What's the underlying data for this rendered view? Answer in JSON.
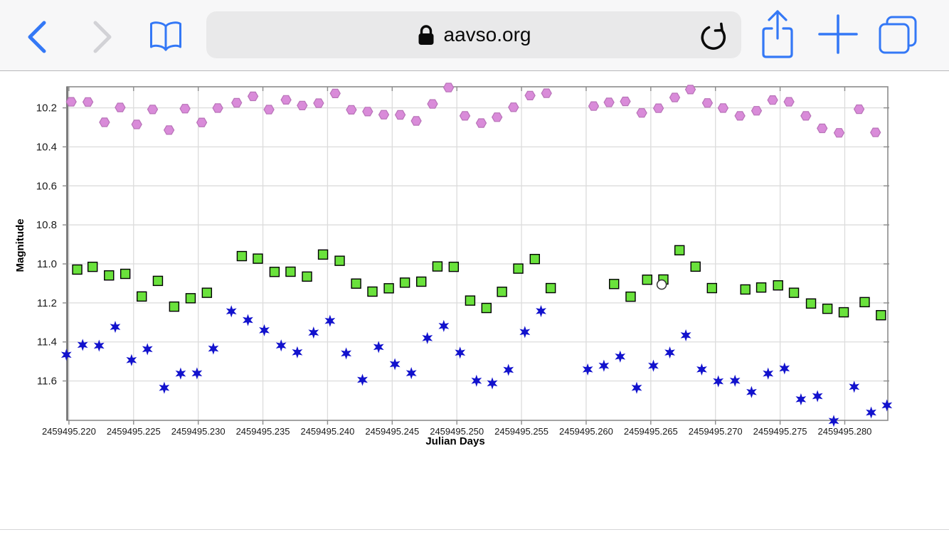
{
  "browser": {
    "url_text": "aavso.org",
    "icons": {
      "back": "chevron-left",
      "forward": "chevron-right",
      "bookmarks": "open-book",
      "lock": "padlock",
      "reload": "circular-arrow",
      "share": "square-with-up-arrow",
      "new_tab": "plus",
      "tabs": "overlapping-squares"
    },
    "colors": {
      "accent": "#3478f6",
      "disabled": "#d2d2d6",
      "toolbar_bg": "#f7f7f8",
      "field_bg": "#e9e9ea"
    }
  },
  "chart_data": {
    "type": "scatter",
    "title": "",
    "xlabel": "Julian Days",
    "ylabel": "Magnitude",
    "xlim": [
      2459495.21984,
      2459495.28333
    ],
    "ylim": [
      10.092,
      11.802
    ],
    "grid": true,
    "frame_color": "#8c8c8c",
    "grid_color": "#dcdcdc",
    "x_ticks": [
      2459495.22,
      2459495.225,
      2459495.23,
      2459495.235,
      2459495.24,
      2459495.245,
      2459495.25,
      2459495.255,
      2459495.26,
      2459495.265,
      2459495.27,
      2459495.275,
      2459495.28
    ],
    "x_tick_labels": [
      "2459495.220",
      "2459495.225",
      "2459495.230",
      "2459495.235",
      "2459495.240",
      "2459495.245",
      "2459495.250",
      "2459495.255",
      "2459495.260",
      "2459495.265",
      "2459495.270",
      "2459495.275",
      "2459495.280"
    ],
    "y_ticks": [
      10.2,
      10.4,
      10.6,
      10.8,
      11.0,
      11.2,
      11.4,
      11.6
    ],
    "series": [
      {
        "name": "violet-hexagons",
        "marker": "hexagon",
        "fill": "#d98bd9",
        "edge": "#b873b8",
        "points": [
          [
            2459495.22018,
            10.169
          ],
          [
            2459495.22147,
            10.17
          ],
          [
            2459495.22275,
            10.274
          ],
          [
            2459495.22396,
            10.198
          ],
          [
            2459495.22524,
            10.285
          ],
          [
            2459495.22647,
            10.208
          ],
          [
            2459495.22774,
            10.314
          ],
          [
            2459495.22898,
            10.204
          ],
          [
            2459495.23027,
            10.275
          ],
          [
            2459495.23151,
            10.201
          ],
          [
            2459495.23297,
            10.174
          ],
          [
            2459495.23423,
            10.141
          ],
          [
            2459495.23547,
            10.209
          ],
          [
            2459495.23679,
            10.159
          ],
          [
            2459495.23804,
            10.188
          ],
          [
            2459495.23931,
            10.176
          ],
          [
            2459495.24059,
            10.126
          ],
          [
            2459495.24184,
            10.21
          ],
          [
            2459495.2431,
            10.219
          ],
          [
            2459495.24435,
            10.235
          ],
          [
            2459495.24562,
            10.236
          ],
          [
            2459495.24686,
            10.267
          ],
          [
            2459495.24812,
            10.18
          ],
          [
            2459495.24936,
            10.096
          ],
          [
            2459495.25062,
            10.241
          ],
          [
            2459495.25189,
            10.278
          ],
          [
            2459495.25311,
            10.248
          ],
          [
            2459495.25438,
            10.197
          ],
          [
            2459495.25566,
            10.137
          ],
          [
            2459495.25693,
            10.125
          ],
          [
            2459495.26058,
            10.191
          ],
          [
            2459495.26177,
            10.172
          ],
          [
            2459495.26303,
            10.167
          ],
          [
            2459495.2643,
            10.226
          ],
          [
            2459495.26559,
            10.202
          ],
          [
            2459495.26685,
            10.147
          ],
          [
            2459495.26806,
            10.106
          ],
          [
            2459495.26938,
            10.175
          ],
          [
            2459495.27059,
            10.201
          ],
          [
            2459495.27189,
            10.241
          ],
          [
            2459495.27318,
            10.215
          ],
          [
            2459495.27442,
            10.16
          ],
          [
            2459495.27569,
            10.169
          ],
          [
            2459495.27699,
            10.241
          ],
          [
            2459495.27825,
            10.305
          ],
          [
            2459495.27956,
            10.328
          ],
          [
            2459495.28111,
            10.207
          ],
          [
            2459495.28238,
            10.326
          ]
        ]
      },
      {
        "name": "green-squares",
        "marker": "square",
        "fill": "#6ae23c",
        "edge": "#000000",
        "points": [
          [
            2459495.22064,
            11.029
          ],
          [
            2459495.22183,
            11.015
          ],
          [
            2459495.2231,
            11.059
          ],
          [
            2459495.22436,
            11.051
          ],
          [
            2459495.22563,
            11.167
          ],
          [
            2459495.22688,
            11.087
          ],
          [
            2459495.22814,
            11.219
          ],
          [
            2459495.22941,
            11.176
          ],
          [
            2459495.23067,
            11.148
          ],
          [
            2459495.23337,
            10.96
          ],
          [
            2459495.23461,
            10.973
          ],
          [
            2459495.2359,
            11.041
          ],
          [
            2459495.23714,
            11.04
          ],
          [
            2459495.23841,
            11.065
          ],
          [
            2459495.23965,
            10.952
          ],
          [
            2459495.24094,
            10.984
          ],
          [
            2459495.24221,
            11.101
          ],
          [
            2459495.24347,
            11.142
          ],
          [
            2459495.24474,
            11.125
          ],
          [
            2459495.24598,
            11.096
          ],
          [
            2459495.24725,
            11.091
          ],
          [
            2459495.2485,
            11.013
          ],
          [
            2459495.24976,
            11.015
          ],
          [
            2459495.25103,
            11.188
          ],
          [
            2459495.25229,
            11.226
          ],
          [
            2459495.25349,
            11.143
          ],
          [
            2459495.25475,
            11.024
          ],
          [
            2459495.25603,
            10.975
          ],
          [
            2459495.25726,
            11.124
          ],
          [
            2459495.26216,
            11.103
          ],
          [
            2459495.26344,
            11.168
          ],
          [
            2459495.26472,
            11.081
          ],
          [
            2459495.26597,
            11.08
          ],
          [
            2459495.26722,
            10.93
          ],
          [
            2459495.26846,
            11.014
          ],
          [
            2459495.26973,
            11.124
          ],
          [
            2459495.27231,
            11.131
          ],
          [
            2459495.27354,
            11.121
          ],
          [
            2459495.27484,
            11.11
          ],
          [
            2459495.27607,
            11.148
          ],
          [
            2459495.27739,
            11.203
          ],
          [
            2459495.27866,
            11.23
          ],
          [
            2459495.27992,
            11.248
          ],
          [
            2459495.28154,
            11.196
          ],
          [
            2459495.2828,
            11.263
          ]
        ]
      },
      {
        "name": "blue-stars",
        "marker": "star6",
        "fill": "#1212cd",
        "edge": "#1212cd",
        "points": [
          [
            2459495.2198,
            11.466
          ],
          [
            2459495.22106,
            11.415
          ],
          [
            2459495.22233,
            11.419
          ],
          [
            2459495.22358,
            11.323
          ],
          [
            2459495.22484,
            11.493
          ],
          [
            2459495.22607,
            11.437
          ],
          [
            2459495.22737,
            11.635
          ],
          [
            2459495.22864,
            11.562
          ],
          [
            2459495.2299,
            11.561
          ],
          [
            2459495.23117,
            11.434
          ],
          [
            2459495.23256,
            11.243
          ],
          [
            2459495.23384,
            11.288
          ],
          [
            2459495.23511,
            11.34
          ],
          [
            2459495.23641,
            11.418
          ],
          [
            2459495.23766,
            11.453
          ],
          [
            2459495.23892,
            11.352
          ],
          [
            2459495.24019,
            11.292
          ],
          [
            2459495.24144,
            11.459
          ],
          [
            2459495.2427,
            11.594
          ],
          [
            2459495.24395,
            11.426
          ],
          [
            2459495.24521,
            11.514
          ],
          [
            2459495.24648,
            11.56
          ],
          [
            2459495.24772,
            11.38
          ],
          [
            2459495.24899,
            11.318
          ],
          [
            2459495.25025,
            11.455
          ],
          [
            2459495.25152,
            11.599
          ],
          [
            2459495.25274,
            11.612
          ],
          [
            2459495.25399,
            11.543
          ],
          [
            2459495.25526,
            11.349
          ],
          [
            2459495.25651,
            11.242
          ],
          [
            2459495.26012,
            11.541
          ],
          [
            2459495.26137,
            11.522
          ],
          [
            2459495.26263,
            11.475
          ],
          [
            2459495.26391,
            11.635
          ],
          [
            2459495.2652,
            11.522
          ],
          [
            2459495.26647,
            11.454
          ],
          [
            2459495.26771,
            11.366
          ],
          [
            2459495.26894,
            11.541
          ],
          [
            2459495.27022,
            11.602
          ],
          [
            2459495.27151,
            11.599
          ],
          [
            2459495.27279,
            11.657
          ],
          [
            2459495.27407,
            11.562
          ],
          [
            2459495.27534,
            11.536
          ],
          [
            2459495.27661,
            11.694
          ],
          [
            2459495.27789,
            11.678
          ],
          [
            2459495.27915,
            11.805
          ],
          [
            2459495.28073,
            11.63
          ],
          [
            2459495.28204,
            11.762
          ],
          [
            2459495.28326,
            11.725
          ]
        ]
      },
      {
        "name": "open-circles",
        "marker": "circle-open",
        "fill": "#ffffff",
        "edge": "#3a3a3a",
        "points": [
          [
            2459495.26584,
            11.106
          ]
        ]
      }
    ]
  }
}
